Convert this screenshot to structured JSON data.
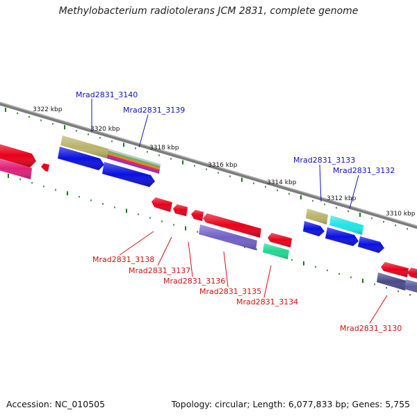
{
  "title": "Methylobacterium radiotolerans JCM 2831, complete genome",
  "footer": {
    "accession": "Accession: NC_010505",
    "stats": "Topology: circular; Length: 6,077,833 bp; Genes: 5,755"
  },
  "ruler_labels": [
    {
      "text": "3322 kbp",
      "name": "ruler-label-3322"
    },
    {
      "text": "3320 kbp",
      "name": "ruler-label-3320"
    },
    {
      "text": "3318 kbp",
      "name": "ruler-label-3318"
    },
    {
      "text": "3316 kbp",
      "name": "ruler-label-3316"
    },
    {
      "text": "3314 kbp",
      "name": "ruler-label-3314"
    },
    {
      "text": "3312 kbp",
      "name": "ruler-label-3312"
    },
    {
      "text": "3310 kbp",
      "name": "ruler-label-3310"
    }
  ],
  "gene_labels_top": [
    {
      "text": "Mrad2831_3140"
    },
    {
      "text": "Mrad2831_3139"
    },
    {
      "text": "Mrad2831_3133"
    },
    {
      "text": "Mrad2831_3132"
    }
  ],
  "gene_labels_bottom": [
    {
      "text": "Mrad2831_3138"
    },
    {
      "text": "Mrad2831_3137"
    },
    {
      "text": "Mrad2831_3136"
    },
    {
      "text": "Mrad2831_3135"
    },
    {
      "text": "Mrad2831_3134"
    },
    {
      "text": "Mrad2831_3130"
    }
  ],
  "colors": {
    "backbone": "#808080",
    "ruler_tick": "#1a7a1a",
    "label_top": "#1010c0",
    "label_bottom": "#d01010",
    "gene_red": "#e8001a",
    "gene_blue": "#0a10e0",
    "gene_magenta": "#e0207a",
    "gene_khaki": "#b9b36a",
    "gene_cyan": "#22e5e5",
    "gene_purple": "#7060c8",
    "gene_teal": "#20d890",
    "gene_slate": "#4a4a8a"
  }
}
